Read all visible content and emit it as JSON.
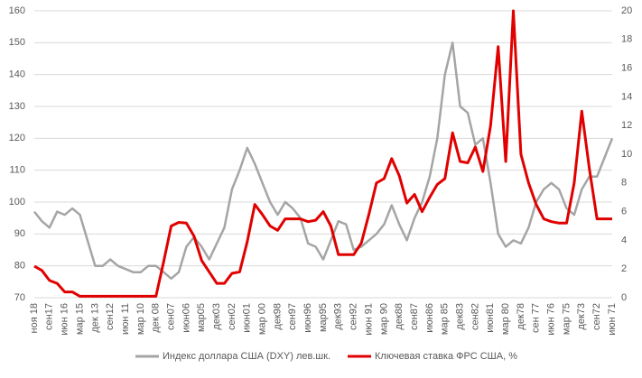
{
  "chart_data": {
    "type": "line",
    "categories": [
      "ноя 18",
      null,
      "сен17",
      null,
      "июн 16",
      null,
      "мар 15",
      null,
      "дек 13",
      null,
      "сен12",
      null,
      "июн 11",
      null,
      "мар 10",
      null,
      "дек 08",
      null,
      "сен07",
      null,
      "июн06",
      null,
      "мар05",
      null,
      "дек03",
      null,
      "сен02",
      null,
      "июн01",
      null,
      "мар 00",
      null,
      "дек98",
      null,
      "сен97",
      null,
      "июн96",
      null,
      "мар95",
      null,
      "дек93",
      null,
      "сен92",
      null,
      "июн 91",
      null,
      "мар 90",
      null,
      "дек88",
      null,
      "сен87",
      null,
      "июн86",
      null,
      "мар 85",
      null,
      "дек83",
      null,
      "сен82",
      null,
      "июн81",
      null,
      "мар 80",
      null,
      "дек78",
      null,
      "сен 77",
      null,
      "июн 76",
      null,
      "мар 75",
      null,
      "дек73",
      null,
      "сен72",
      null,
      "июн 71"
    ],
    "series": [
      {
        "name": "Индекс доллара США (DXY) лев.шк.",
        "color": "#a5a5a5",
        "axis": "y",
        "values": [
          97,
          94,
          92,
          97,
          96,
          98,
          96,
          88,
          80,
          80,
          82,
          80,
          79,
          78,
          78,
          80,
          80,
          78,
          76,
          78,
          86,
          89,
          86,
          82,
          87,
          92,
          104,
          110,
          117,
          112,
          106,
          100,
          96,
          100,
          98,
          95,
          87,
          86,
          82,
          88,
          94,
          93,
          85,
          86,
          88,
          90,
          93,
          99,
          93,
          88,
          95,
          100,
          108,
          120,
          140,
          150,
          130,
          128,
          118,
          120,
          106,
          90,
          86,
          88,
          87,
          92,
          100,
          104,
          106,
          104,
          98,
          96,
          104,
          108,
          108,
          114,
          120
        ]
      },
      {
        "name": "Ключевая ставка ФРС США, %",
        "color": "#e00000",
        "axis": "y2",
        "values": [
          2.2,
          1.9,
          1.2,
          1.0,
          0.4,
          0.4,
          0.1,
          0.1,
          0.1,
          0.1,
          0.1,
          0.1,
          0.1,
          0.1,
          0.1,
          0.1,
          0.1,
          2.5,
          5.0,
          5.25,
          5.2,
          4.3,
          2.6,
          1.8,
          1.0,
          1.0,
          1.7,
          1.8,
          3.9,
          6.5,
          5.8,
          5.0,
          4.7,
          5.5,
          5.5,
          5.5,
          5.3,
          5.4,
          6.0,
          5.0,
          3.0,
          3.0,
          3.0,
          3.8,
          5.8,
          8.0,
          8.3,
          9.7,
          8.5,
          6.6,
          7.2,
          6.0,
          7.0,
          7.9,
          8.3,
          11.5,
          9.5,
          9.4,
          10.5,
          8.8,
          12.0,
          17.5,
          9.5,
          20,
          10.0,
          8.0,
          6.5,
          5.5,
          5.3,
          5.2,
          5.2,
          8,
          13,
          9,
          5.5,
          5.5,
          5.5
        ]
      }
    ],
    "ylim": [
      70,
      160
    ],
    "yticks": [
      70,
      80,
      90,
      100,
      110,
      120,
      130,
      140,
      150,
      160
    ],
    "y2lim": [
      0,
      20
    ],
    "y2ticks": [
      0,
      2,
      4,
      6,
      8,
      10,
      12,
      14,
      16,
      18,
      20
    ],
    "grid": true
  }
}
